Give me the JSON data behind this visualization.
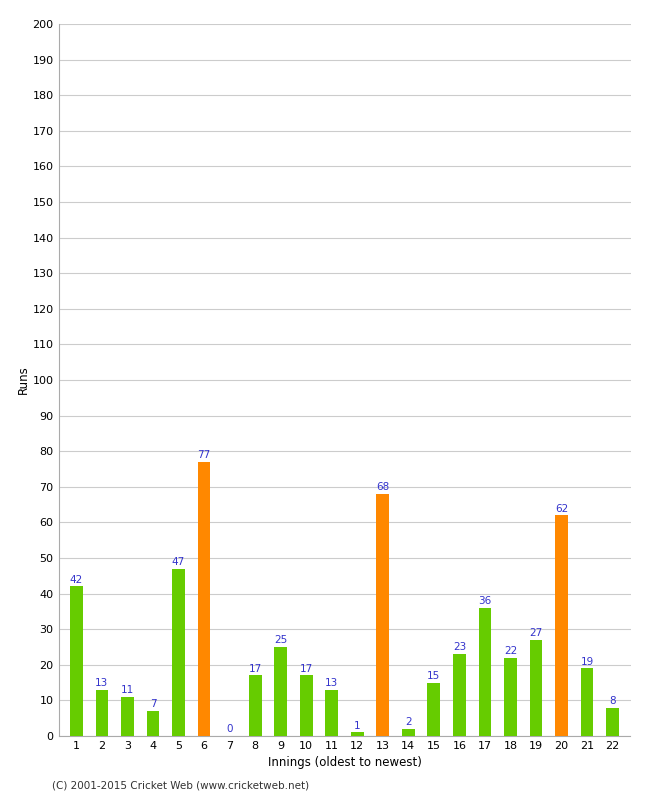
{
  "innings": [
    1,
    2,
    3,
    4,
    5,
    6,
    7,
    8,
    9,
    10,
    11,
    12,
    13,
    14,
    15,
    16,
    17,
    18,
    19,
    20,
    21,
    22
  ],
  "runs": [
    42,
    13,
    11,
    7,
    47,
    77,
    0,
    17,
    25,
    17,
    13,
    1,
    68,
    2,
    15,
    23,
    36,
    22,
    27,
    62,
    19,
    8
  ],
  "colors": [
    "#66cc00",
    "#66cc00",
    "#66cc00",
    "#66cc00",
    "#66cc00",
    "#ff8800",
    "#66cc00",
    "#66cc00",
    "#66cc00",
    "#66cc00",
    "#66cc00",
    "#66cc00",
    "#ff8800",
    "#66cc00",
    "#66cc00",
    "#66cc00",
    "#66cc00",
    "#66cc00",
    "#66cc00",
    "#ff8800",
    "#66cc00",
    "#66cc00"
  ],
  "xlabel": "Innings (oldest to newest)",
  "ylabel": "Runs",
  "ylim": [
    0,
    200
  ],
  "yticks": [
    0,
    10,
    20,
    30,
    40,
    50,
    60,
    70,
    80,
    90,
    100,
    110,
    120,
    130,
    140,
    150,
    160,
    170,
    180,
    190,
    200
  ],
  "value_color": "#3333cc",
  "value_fontsize": 7.5,
  "background_color": "#ffffff",
  "grid_color": "#cccccc",
  "footer": "(C) 2001-2015 Cricket Web (www.cricketweb.net)",
  "bar_width": 0.5
}
